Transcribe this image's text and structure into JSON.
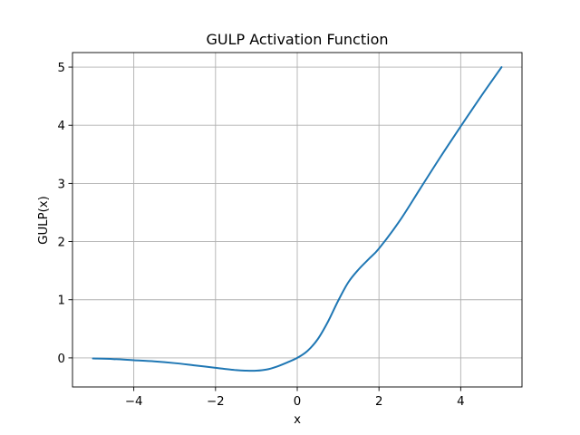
{
  "chart_data": {
    "type": "line",
    "title": "GULP Activation Function",
    "xlabel": "x",
    "ylabel": "GULP(x)",
    "xlim": [
      -5.5,
      5.5
    ],
    "ylim": [
      -0.5,
      5.25
    ],
    "grid": true,
    "legend": "none",
    "xticks": [
      -4,
      -2,
      0,
      2,
      4
    ],
    "xtick_labels": [
      "−4",
      "−2",
      "0",
      "2",
      "4"
    ],
    "yticks": [
      0,
      1,
      2,
      3,
      4,
      5
    ],
    "ytick_labels": [
      "0",
      "1",
      "2",
      "3",
      "4",
      "5"
    ],
    "series": [
      {
        "color": "#1f77b4",
        "x": [
          -5.0,
          -4.5,
          -4.0,
          -3.5,
          -3.0,
          -2.5,
          -2.0,
          -1.5,
          -1.25,
          -1.0,
          -0.75,
          -0.5,
          -0.25,
          0.0,
          0.25,
          0.5,
          0.75,
          1.0,
          1.25,
          1.5,
          1.75,
          2.0,
          2.5,
          3.0,
          3.5,
          4.0,
          4.5,
          5.0
        ],
        "y": [
          -0.01,
          -0.02,
          -0.04,
          -0.06,
          -0.09,
          -0.13,
          -0.17,
          -0.21,
          -0.22,
          -0.22,
          -0.2,
          -0.15,
          -0.08,
          0.0,
          0.12,
          0.32,
          0.62,
          0.98,
          1.3,
          1.52,
          1.7,
          1.88,
          2.35,
          2.9,
          3.45,
          3.98,
          4.5,
          5.0
        ]
      }
    ]
  }
}
